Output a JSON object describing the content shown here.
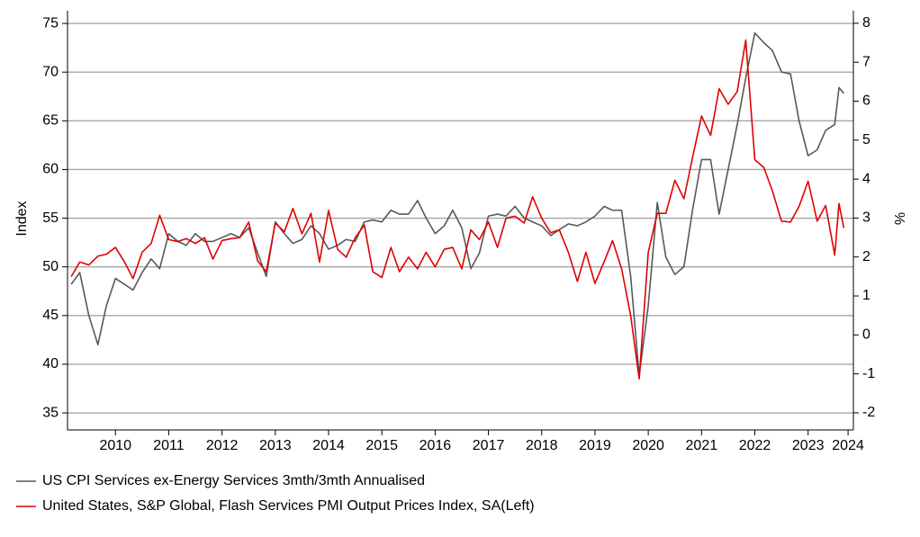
{
  "chart_data": {
    "type": "line",
    "ylabel": "Index",
    "y2label": "%",
    "x": [
      2009.67,
      2009.83,
      2010,
      2010.17,
      2010.33,
      2010.5,
      2010.67,
      2010.83,
      2011,
      2011.17,
      2011.33,
      2011.5,
      2011.67,
      2011.83,
      2012,
      2012.17,
      2012.33,
      2012.5,
      2012.67,
      2012.83,
      2013,
      2013.17,
      2013.33,
      2013.5,
      2013.67,
      2013.83,
      2014,
      2014.17,
      2014.33,
      2014.5,
      2014.67,
      2014.83,
      2015,
      2015.17,
      2015.33,
      2015.5,
      2015.67,
      2015.83,
      2016,
      2016.17,
      2016.33,
      2016.5,
      2016.67,
      2016.83,
      2017,
      2017.17,
      2017.33,
      2017.5,
      2017.67,
      2017.83,
      2018,
      2018.17,
      2018.33,
      2018.5,
      2018.67,
      2018.83,
      2019,
      2019.17,
      2019.33,
      2019.5,
      2019.67,
      2019.83,
      2020,
      2020.17,
      2020.33,
      2020.5,
      2020.67,
      2020.83,
      2021,
      2021.17,
      2021.33,
      2021.5,
      2021.67,
      2021.83,
      2022,
      2022.17,
      2022.33,
      2022.5,
      2022.67,
      2022.83,
      2023,
      2023.17,
      2023.33,
      2023.5,
      2023.67,
      2023.83,
      2024,
      2024.08,
      2024.17
    ],
    "series": [
      {
        "name": "US CPI Services ex-Energy Services 3mth/3mth Annualised",
        "color": "#595959",
        "axis": "y2",
        "values": [
          1.3,
          1.6,
          0.5,
          -0.25,
          0.75,
          1.45,
          1.3,
          1.15,
          1.6,
          1.95,
          1.7,
          2.6,
          2.4,
          2.3,
          2.6,
          2.4,
          2.4,
          2.5,
          2.6,
          2.5,
          2.75,
          2.1,
          1.5,
          2.9,
          2.6,
          2.35,
          2.45,
          2.8,
          2.6,
          2.2,
          2.3,
          2.45,
          2.4,
          2.9,
          2.95,
          2.9,
          3.2,
          3.1,
          3.1,
          3.45,
          3.0,
          2.6,
          2.8,
          3.2,
          2.75,
          1.7,
          2.1,
          3.05,
          3.1,
          3.05,
          3.3,
          3.0,
          2.9,
          2.8,
          2.55,
          2.7,
          2.85,
          2.8,
          2.9,
          3.05,
          3.3,
          3.2,
          3.2,
          1.5,
          -1.05,
          0.75,
          3.4,
          2.0,
          1.55,
          1.75,
          3.2,
          4.5,
          4.5,
          3.1,
          4.25,
          5.4,
          6.6,
          7.75,
          7.5,
          7.3,
          6.75,
          6.7,
          5.5,
          4.6,
          4.75,
          5.25,
          5.4,
          6.35,
          6.2
        ]
      },
      {
        "name": "United States, S&P Global, Flash Services PMI Output Prices Index, SA(Left)",
        "color": "#e00000",
        "values": [
          49.0,
          50.5,
          50.2,
          51.1,
          51.3,
          52.0,
          50.5,
          48.8,
          51.5,
          52.4,
          55.3,
          52.8,
          52.6,
          52.9,
          52.4,
          53.0,
          50.8,
          52.7,
          52.9,
          53.0,
          54.6,
          50.6,
          49.5,
          54.5,
          53.6,
          56.0,
          53.4,
          55.5,
          50.5,
          55.8,
          51.8,
          51.0,
          53.0,
          54.3,
          49.5,
          48.9,
          52.0,
          49.5,
          51.0,
          49.8,
          51.5,
          50.0,
          51.8,
          52.0,
          49.8,
          53.8,
          52.8,
          54.6,
          52.0,
          55.0,
          55.2,
          54.5,
          57.2,
          55.0,
          53.5,
          53.8,
          51.5,
          48.5,
          51.5,
          48.3,
          50.5,
          52.7,
          49.8,
          45.0,
          38.5,
          51.5,
          55.5,
          55.5,
          58.9,
          57.0,
          61.2,
          65.5,
          63.5,
          68.3,
          66.7,
          68.0,
          73.3,
          61.0,
          60.2,
          57.8,
          54.7,
          54.6,
          56.2,
          58.8,
          54.7,
          56.3,
          51.2,
          56.5,
          54.0
        ]
      }
    ],
    "xlim": [
      2009.6,
      2024.35
    ],
    "xticks": [
      {
        "value": 2010.5,
        "label": "2010"
      },
      {
        "value": 2011.5,
        "label": "2011"
      },
      {
        "value": 2012.5,
        "label": "2012"
      },
      {
        "value": 2013.5,
        "label": "2013"
      },
      {
        "value": 2014.5,
        "label": "2014"
      },
      {
        "value": 2015.5,
        "label": "2015"
      },
      {
        "value": 2016.5,
        "label": "2016"
      },
      {
        "value": 2017.5,
        "label": "2017"
      },
      {
        "value": 2018.5,
        "label": "2018"
      },
      {
        "value": 2019.5,
        "label": "2019"
      },
      {
        "value": 2020.5,
        "label": "2020"
      },
      {
        "value": 2021.5,
        "label": "2021"
      },
      {
        "value": 2022.5,
        "label": "2022"
      },
      {
        "value": 2023.5,
        "label": "2023"
      },
      {
        "value": 2024.25,
        "label": "2024"
      }
    ],
    "ylim": [
      33.25,
      76.3
    ],
    "yticks": [
      35,
      40,
      45,
      50,
      55,
      60,
      65,
      70,
      75
    ],
    "y2lim": [
      -2.44,
      8.32
    ],
    "y2ticks": [
      -2,
      -1,
      0,
      1,
      2,
      3,
      4,
      5,
      6,
      7,
      8
    ],
    "grid": true,
    "legend": "bottom"
  }
}
